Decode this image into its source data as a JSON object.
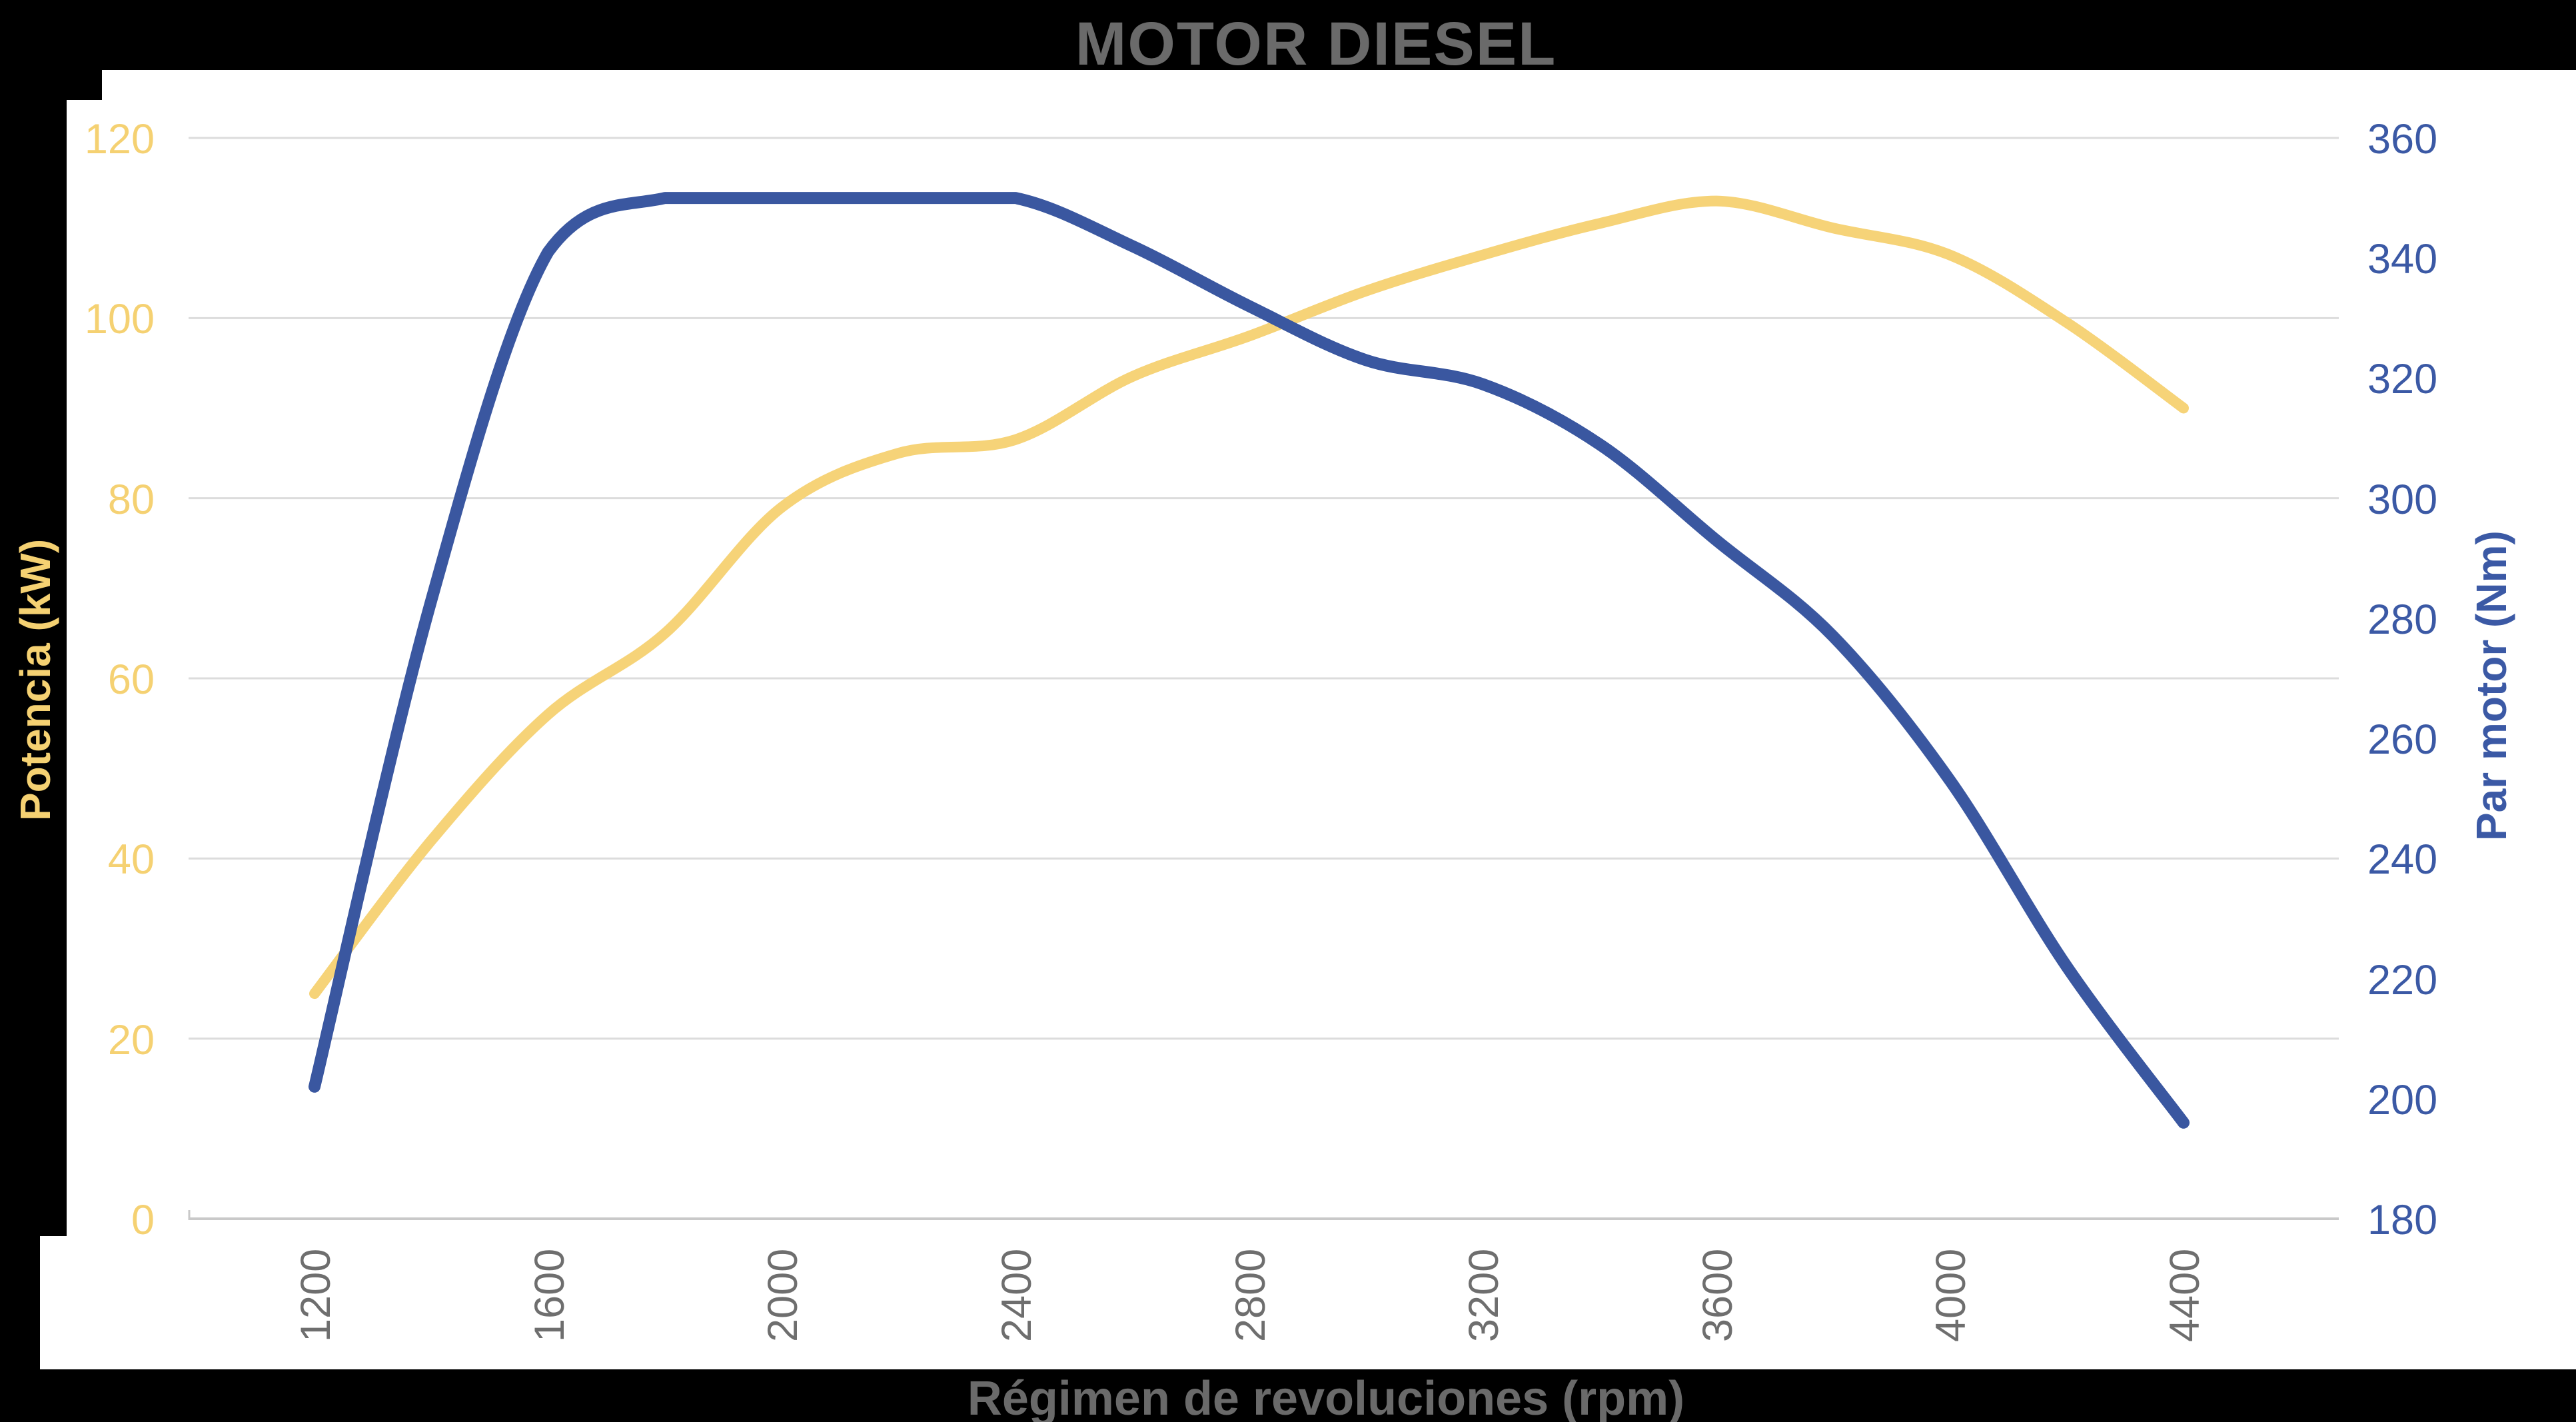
{
  "title": "MOTOR DIESEL",
  "x_axis": {
    "title": "Régimen de revoluciones (rpm)",
    "ticks": [
      "1200",
      "1600",
      "2000",
      "2400",
      "2800",
      "3200",
      "3600",
      "4000",
      "4400"
    ]
  },
  "y_left": {
    "title": "Potencia (kW)",
    "ticks": [
      "120",
      "100",
      "80",
      "60",
      "40",
      "20",
      "0"
    ]
  },
  "y_right": {
    "title": "Par motor (Nm)",
    "ticks": [
      "360",
      "340",
      "320",
      "300",
      "280",
      "260",
      "240",
      "220",
      "200",
      "180"
    ]
  },
  "colors": {
    "background": "#000000",
    "panel": "#ffffff",
    "grid": "#dcdcdc",
    "axis_line": "#c9c9c9",
    "power": "#F6D378",
    "power_text": "#F5D172",
    "torque": "#3A57A0",
    "torque_text": "#3B59A5",
    "title_text": "#6a6a6a",
    "xtick_text": "#6e6e6e"
  },
  "chart_data": {
    "type": "line",
    "title": "MOTOR DIESEL",
    "xlabel": "Régimen de revoluciones (rpm)",
    "x": [
      1200,
      1400,
      1600,
      1800,
      2000,
      2200,
      2400,
      2600,
      2800,
      3000,
      3200,
      3400,
      3600,
      3800,
      4000,
      4200,
      4400
    ],
    "x_ticks": [
      1200,
      1600,
      2000,
      2400,
      2800,
      3200,
      3600,
      4000,
      4400
    ],
    "series": [
      {
        "name": "Potencia (kW)",
        "axis": "left",
        "color": "#F6D378",
        "values": [
          25,
          42,
          56,
          65,
          79,
          85,
          86.5,
          93.5,
          98,
          103,
          107,
          110.5,
          113,
          110,
          107,
          99.5,
          90
        ]
      },
      {
        "name": "Par motor (Nm)",
        "axis": "right",
        "color": "#3A57A0",
        "values": [
          202,
          283,
          341,
          350,
          350,
          350,
          350,
          342,
          332,
          323,
          319,
          309,
          293,
          277,
          253,
          222,
          196
        ]
      }
    ],
    "y_left_label": "Potencia (kW)",
    "y_left_lim": [
      0,
      120
    ],
    "y_left_step": 20,
    "y_right_label": "Par motor (Nm)",
    "y_right_lim": [
      180,
      360
    ],
    "y_right_step": 20,
    "grid": "horizontal",
    "legend": "none"
  }
}
